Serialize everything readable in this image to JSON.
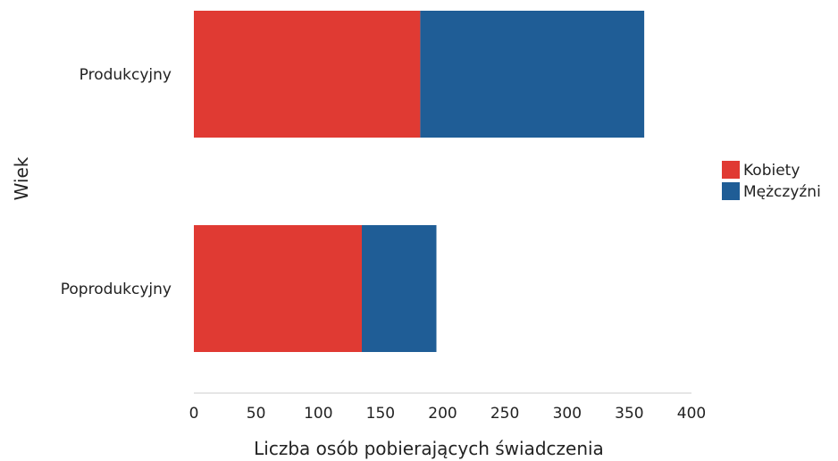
{
  "chart_data": {
    "type": "bar",
    "orientation": "horizontal",
    "stacked": true,
    "categories": [
      "Produkcyjny",
      "Poprodukcyjny"
    ],
    "series": [
      {
        "name": "Kobiety",
        "values": [
          182,
          135
        ],
        "color": "#e03a33"
      },
      {
        "name": "Mężczyźni",
        "values": [
          180,
          60
        ],
        "color": "#1f5d96"
      }
    ],
    "xlabel": "Liczba osób pobierających świadczenia",
    "ylabel": "Wiek",
    "xlim": [
      0,
      400
    ],
    "xticks": [
      "0",
      "50",
      "100",
      "150",
      "200",
      "250",
      "300",
      "350",
      "400"
    ],
    "grid": false,
    "legend_position": "right"
  }
}
